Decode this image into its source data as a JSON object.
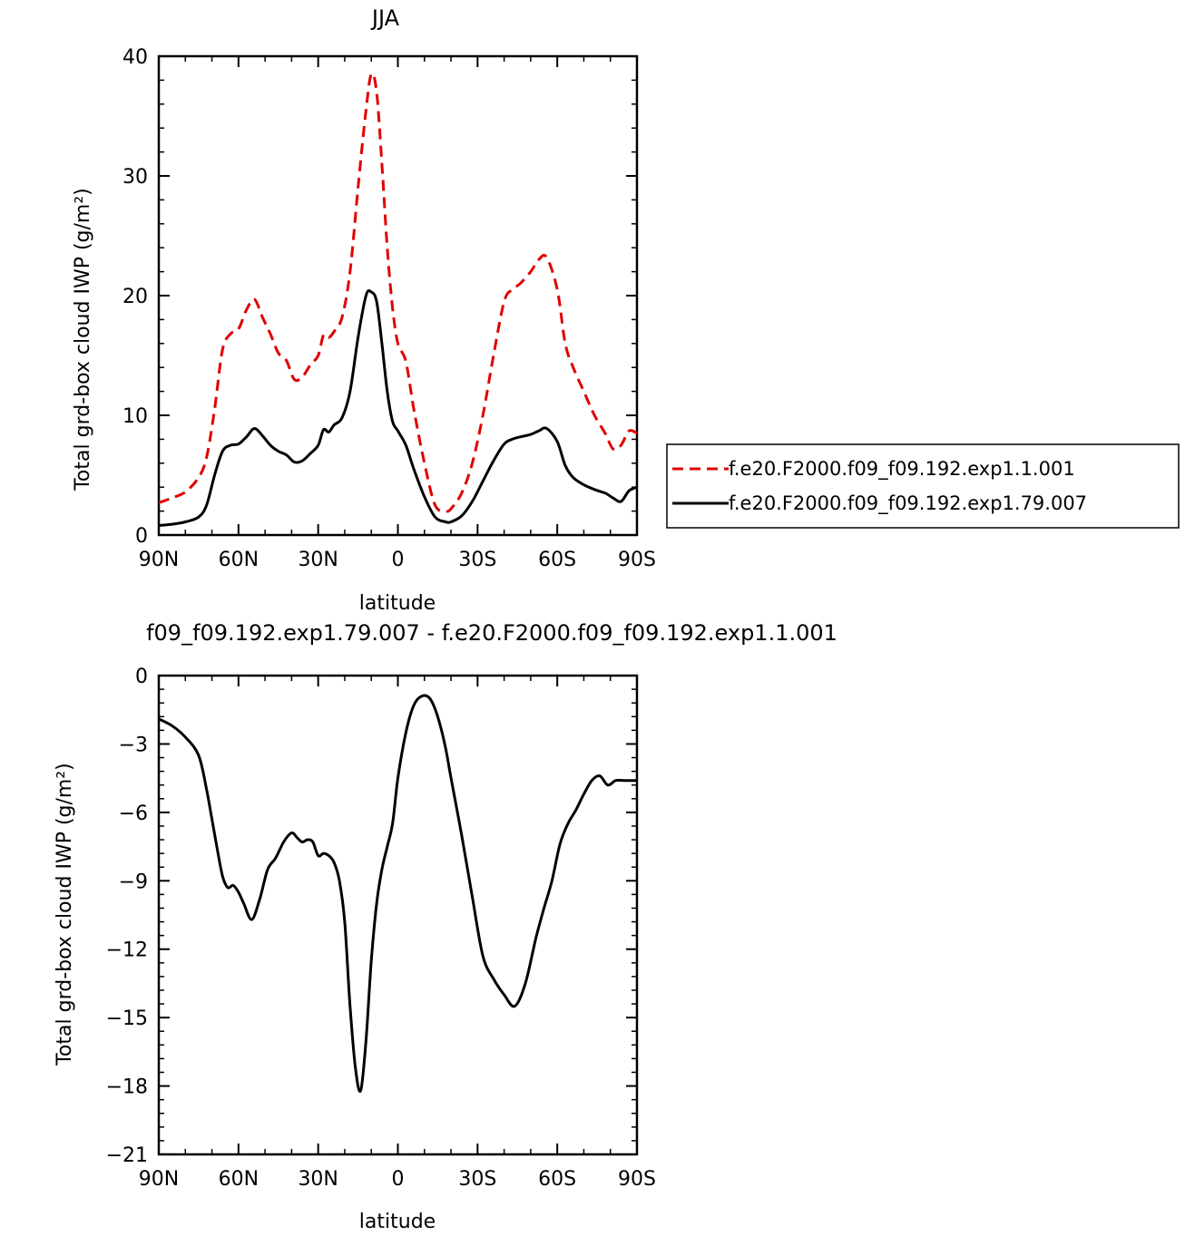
{
  "chart_data": [
    {
      "type": "line",
      "title": "JJA",
      "xlabel": "latitude",
      "ylabel": "Total grd-box cloud IWP (g/m²)",
      "xlim": [
        90,
        -90
      ],
      "ylim": [
        0,
        40
      ],
      "xticks": [
        90,
        60,
        30,
        0,
        -30,
        -60,
        -90
      ],
      "xtick_labels": [
        "90N",
        "60N",
        "30N",
        "0",
        "30S",
        "60S",
        "90S"
      ],
      "yticks": [
        0,
        10,
        20,
        30,
        40
      ],
      "ytick_labels": [
        "0",
        "10",
        "20",
        "30",
        "40"
      ],
      "legend": "right",
      "series": [
        {
          "name": "f.e20.F2000.f09_f09.192.exp1.1.001",
          "color": "#e00000",
          "style": "dashed",
          "x": [
            90,
            85,
            80,
            75,
            72,
            69,
            66,
            63,
            60,
            57,
            54,
            51,
            48,
            45,
            42,
            39,
            36,
            33,
            30,
            28,
            26,
            24,
            21,
            18,
            15,
            12,
            10,
            8,
            6,
            4,
            2,
            0,
            -3,
            -6,
            -10,
            -14,
            -18,
            -20,
            -24,
            -28,
            -32,
            -36,
            -40,
            -43,
            -46,
            -50,
            -53,
            -56,
            -60,
            -63,
            -66,
            -70,
            -74,
            -78,
            -81,
            -84,
            -87,
            -90
          ],
          "y": [
            2.7,
            3.1,
            3.6,
            4.8,
            6.5,
            10.5,
            15.5,
            16.8,
            17.2,
            18.8,
            19.7,
            18.2,
            16.8,
            15.2,
            14.6,
            13.0,
            13.2,
            14.2,
            15.0,
            16.7,
            16.5,
            17.0,
            18.2,
            22.0,
            29.0,
            35.5,
            38.5,
            37.0,
            31.0,
            24.0,
            19.0,
            16.0,
            14.5,
            10.5,
            6.0,
            2.5,
            2.0,
            2.2,
            3.5,
            6.0,
            10.0,
            15.0,
            19.5,
            20.5,
            21.0,
            22.0,
            23.0,
            23.2,
            20.5,
            16.0,
            14.0,
            12.0,
            10.0,
            8.5,
            7.2,
            7.5,
            8.7,
            8.5
          ]
        },
        {
          "name": "f.e20.F2000.f09_f09.192.exp1.79.007",
          "color": "#000000",
          "style": "solid",
          "x": [
            90,
            85,
            80,
            75,
            72,
            69,
            66,
            63,
            60,
            57,
            54,
            51,
            48,
            45,
            42,
            39,
            36,
            33,
            30,
            28,
            26,
            24,
            21,
            18,
            15,
            12,
            10,
            8,
            6,
            4,
            2,
            0,
            -3,
            -6,
            -10,
            -14,
            -18,
            -20,
            -24,
            -28,
            -32,
            -36,
            -40,
            -43,
            -46,
            -50,
            -53,
            -56,
            -60,
            -63,
            -66,
            -70,
            -74,
            -78,
            -81,
            -84,
            -87,
            -90
          ],
          "y": [
            0.8,
            0.9,
            1.1,
            1.5,
            2.5,
            5.0,
            7.0,
            7.5,
            7.6,
            8.2,
            8.9,
            8.3,
            7.5,
            7.0,
            6.7,
            6.1,
            6.2,
            6.8,
            7.5,
            8.8,
            8.6,
            9.2,
            9.8,
            12.0,
            16.5,
            20.0,
            20.3,
            19.5,
            16.0,
            12.0,
            9.5,
            8.7,
            7.5,
            5.5,
            3.2,
            1.5,
            1.1,
            1.1,
            1.6,
            2.8,
            4.5,
            6.2,
            7.6,
            8.0,
            8.2,
            8.4,
            8.7,
            8.9,
            7.8,
            5.8,
            4.8,
            4.2,
            3.8,
            3.5,
            3.1,
            2.8,
            3.7,
            4.0
          ]
        }
      ]
    },
    {
      "type": "line",
      "title": "f09_f09.192.exp1.79.007 - f.e20.F2000.f09_f09.192.exp1.1.001",
      "xlabel": "latitude",
      "ylabel": "Total grd-box cloud IWP (g/m²)",
      "xlim": [
        90,
        -90
      ],
      "ylim": [
        -21,
        0
      ],
      "xticks": [
        90,
        60,
        30,
        0,
        -30,
        -60,
        -90
      ],
      "xtick_labels": [
        "90N",
        "60N",
        "30N",
        "0",
        "30S",
        "60S",
        "90S"
      ],
      "yticks": [
        0,
        -3,
        -6,
        -9,
        -12,
        -15,
        -18,
        -21
      ],
      "ytick_labels": [
        "0",
        "−3",
        "−6",
        "−9",
        "−12",
        "−15",
        "−18",
        "−21"
      ],
      "series": [
        {
          "color": "#000000",
          "style": "solid",
          "x": [
            90,
            85,
            80,
            75,
            72,
            70,
            68,
            66,
            64,
            62,
            60,
            58,
            55,
            52,
            49,
            46,
            43,
            40,
            38,
            36,
            34,
            32,
            30,
            28,
            26,
            24,
            22,
            20,
            18,
            16,
            14,
            12,
            10,
            8,
            6,
            4,
            2,
            0,
            -3,
            -6,
            -9,
            -12,
            -15,
            -18,
            -20,
            -24,
            -28,
            -32,
            -36,
            -40,
            -44,
            -48,
            -52,
            -55,
            -58,
            -61,
            -64,
            -67,
            -70,
            -73,
            -76,
            -79,
            -82,
            -85,
            -88,
            -90
          ],
          "y": [
            -1.9,
            -2.2,
            -2.7,
            -3.5,
            -5.0,
            -6.3,
            -7.6,
            -8.8,
            -9.3,
            -9.2,
            -9.5,
            -10.0,
            -10.7,
            -9.8,
            -8.5,
            -8.0,
            -7.3,
            -6.9,
            -7.1,
            -7.3,
            -7.2,
            -7.3,
            -7.9,
            -7.8,
            -7.9,
            -8.2,
            -9.0,
            -10.8,
            -14.5,
            -17.2,
            -18.2,
            -16.0,
            -12.5,
            -10.0,
            -8.5,
            -7.5,
            -6.5,
            -4.5,
            -2.5,
            -1.3,
            -0.9,
            -1.0,
            -1.8,
            -3.2,
            -4.5,
            -7.0,
            -9.7,
            -12.3,
            -13.3,
            -14.0,
            -14.5,
            -13.5,
            -11.5,
            -10.2,
            -9.0,
            -7.4,
            -6.5,
            -5.9,
            -5.2,
            -4.6,
            -4.4,
            -4.8,
            -4.6,
            -4.6,
            -4.6,
            -4.6
          ]
        }
      ]
    }
  ]
}
